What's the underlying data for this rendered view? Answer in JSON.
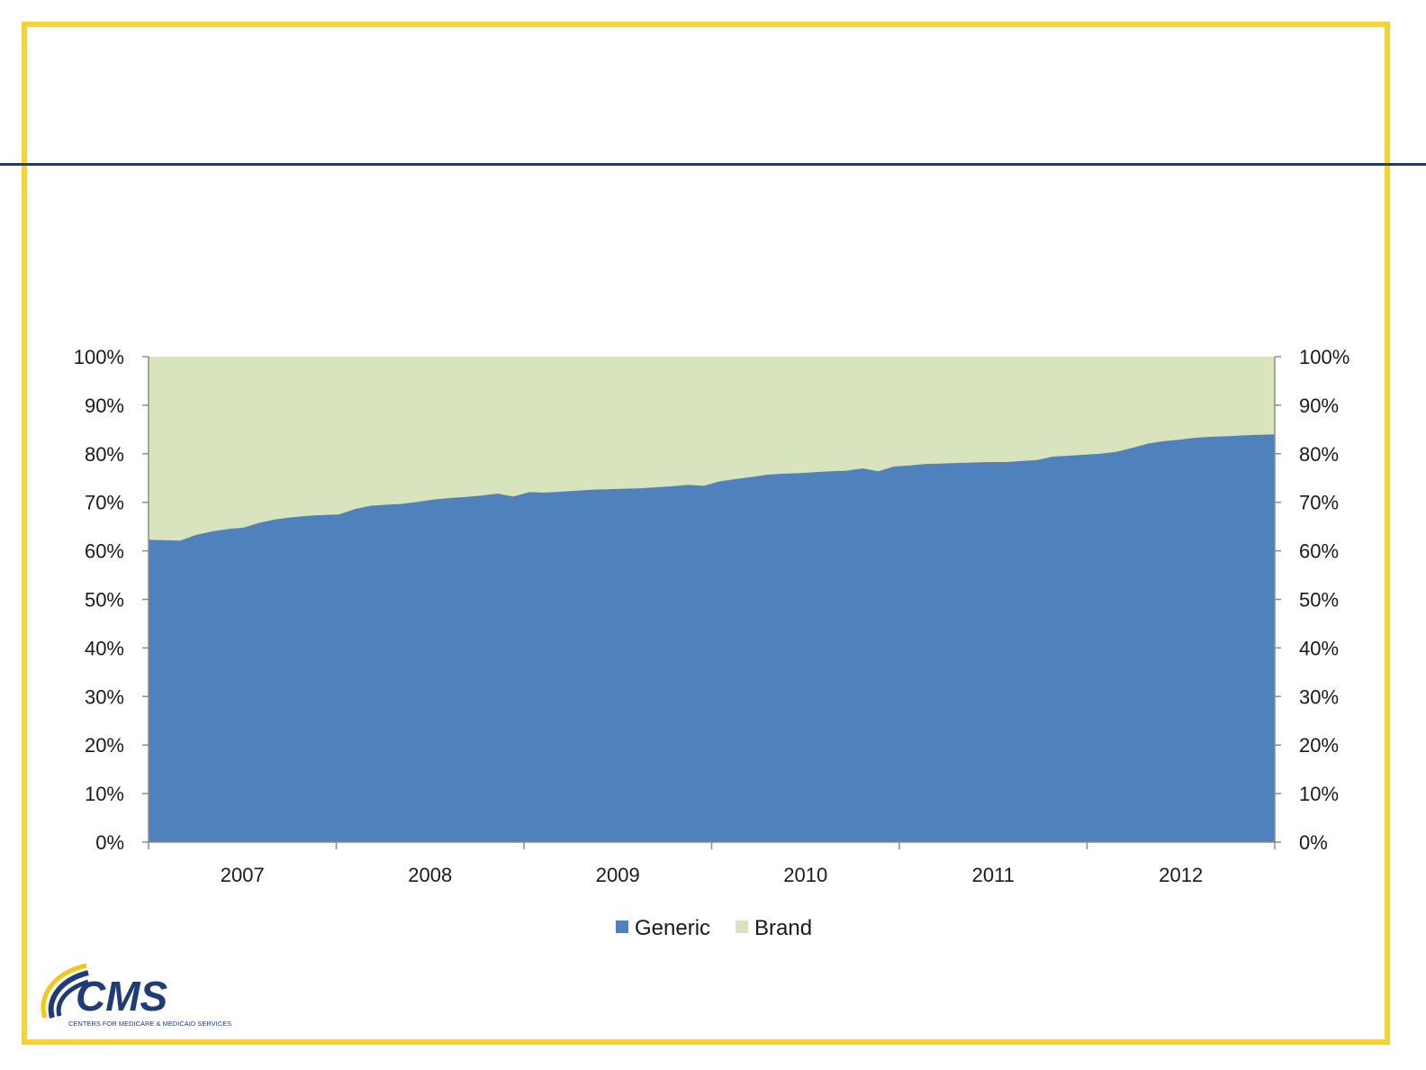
{
  "chart_data": {
    "type": "area",
    "stacked": true,
    "percent_stacked": true,
    "x": [
      "2007-01",
      "2007-02",
      "2007-03",
      "2007-04",
      "2007-05",
      "2007-06",
      "2007-07",
      "2007-08",
      "2007-09",
      "2007-10",
      "2007-11",
      "2007-12",
      "2008-01",
      "2008-02",
      "2008-03",
      "2008-04",
      "2008-05",
      "2008-06",
      "2008-07",
      "2008-08",
      "2008-09",
      "2008-10",
      "2008-11",
      "2008-12",
      "2009-01",
      "2009-02",
      "2009-03",
      "2009-04",
      "2009-05",
      "2009-06",
      "2009-07",
      "2009-08",
      "2009-09",
      "2009-10",
      "2009-11",
      "2009-12",
      "2010-01",
      "2010-02",
      "2010-03",
      "2010-04",
      "2010-05",
      "2010-06",
      "2010-07",
      "2010-08",
      "2010-09",
      "2010-10",
      "2010-11",
      "2010-12",
      "2011-01",
      "2011-02",
      "2011-03",
      "2011-04",
      "2011-05",
      "2011-06",
      "2011-07",
      "2011-08",
      "2011-09",
      "2011-10",
      "2011-11",
      "2011-12",
      "2012-01",
      "2012-02",
      "2012-03",
      "2012-04",
      "2012-05",
      "2012-06",
      "2012-07",
      "2012-08",
      "2012-09",
      "2012-10",
      "2012-11",
      "2012-12"
    ],
    "categories": [
      "2007",
      "2008",
      "2009",
      "2010",
      "2011",
      "2012"
    ],
    "series": [
      {
        "name": "Generic",
        "color": "#4f81bd",
        "values": [
          62.3,
          62.2,
          62.1,
          63.3,
          64.0,
          64.5,
          64.8,
          65.8,
          66.5,
          66.9,
          67.2,
          67.4,
          67.5,
          68.6,
          69.3,
          69.5,
          69.7,
          70.1,
          70.6,
          70.9,
          71.1,
          71.4,
          71.8,
          71.2,
          72.1,
          72.0,
          72.2,
          72.4,
          72.6,
          72.7,
          72.8,
          72.9,
          73.1,
          73.3,
          73.6,
          73.4,
          74.3,
          74.8,
          75.2,
          75.7,
          75.9,
          76.0,
          76.2,
          76.4,
          76.5,
          77.0,
          76.4,
          77.4,
          77.6,
          77.9,
          78.0,
          78.1,
          78.2,
          78.3,
          78.3,
          78.5,
          78.7,
          79.4,
          79.6,
          79.8,
          80.0,
          80.4,
          81.2,
          82.1,
          82.6,
          82.9,
          83.3,
          83.5,
          83.6,
          83.8,
          83.9,
          84.0
        ]
      },
      {
        "name": "Brand",
        "color": "#d7e4bd",
        "values": [
          37.7,
          37.8,
          37.9,
          36.7,
          36.0,
          35.5,
          35.2,
          34.2,
          33.5,
          33.1,
          32.8,
          32.6,
          32.5,
          31.4,
          30.7,
          30.5,
          30.3,
          29.9,
          29.4,
          29.1,
          28.9,
          28.6,
          28.2,
          28.8,
          27.9,
          28.0,
          27.8,
          27.6,
          27.4,
          27.3,
          27.2,
          27.1,
          26.9,
          26.7,
          26.4,
          26.6,
          25.7,
          25.2,
          24.8,
          24.3,
          24.1,
          24.0,
          23.8,
          23.6,
          23.5,
          23.0,
          23.6,
          22.6,
          22.4,
          22.1,
          22.0,
          21.9,
          21.8,
          21.7,
          21.7,
          21.5,
          21.3,
          20.6,
          20.4,
          20.2,
          20.0,
          19.6,
          18.8,
          17.9,
          17.4,
          17.1,
          16.7,
          16.5,
          16.4,
          16.2,
          16.1,
          16.0
        ]
      }
    ],
    "y_ticks": [
      "0%",
      "10%",
      "20%",
      "30%",
      "40%",
      "50%",
      "60%",
      "70%",
      "80%",
      "90%",
      "100%"
    ],
    "ylim": [
      0,
      100
    ],
    "secondary_y_axis": true,
    "legend": {
      "position": "bottom",
      "entries": [
        "Generic",
        "Brand"
      ]
    },
    "grid": false
  },
  "logo": {
    "text": "CMS",
    "subtitle": "CENTERS FOR MEDICARE & MEDICAID SERVICES",
    "colors": {
      "primary": "#1f3b78",
      "accent": "#f5c518"
    }
  },
  "theme": {
    "frame_color": "#f5d335",
    "rule_color": "#1f3b78"
  }
}
